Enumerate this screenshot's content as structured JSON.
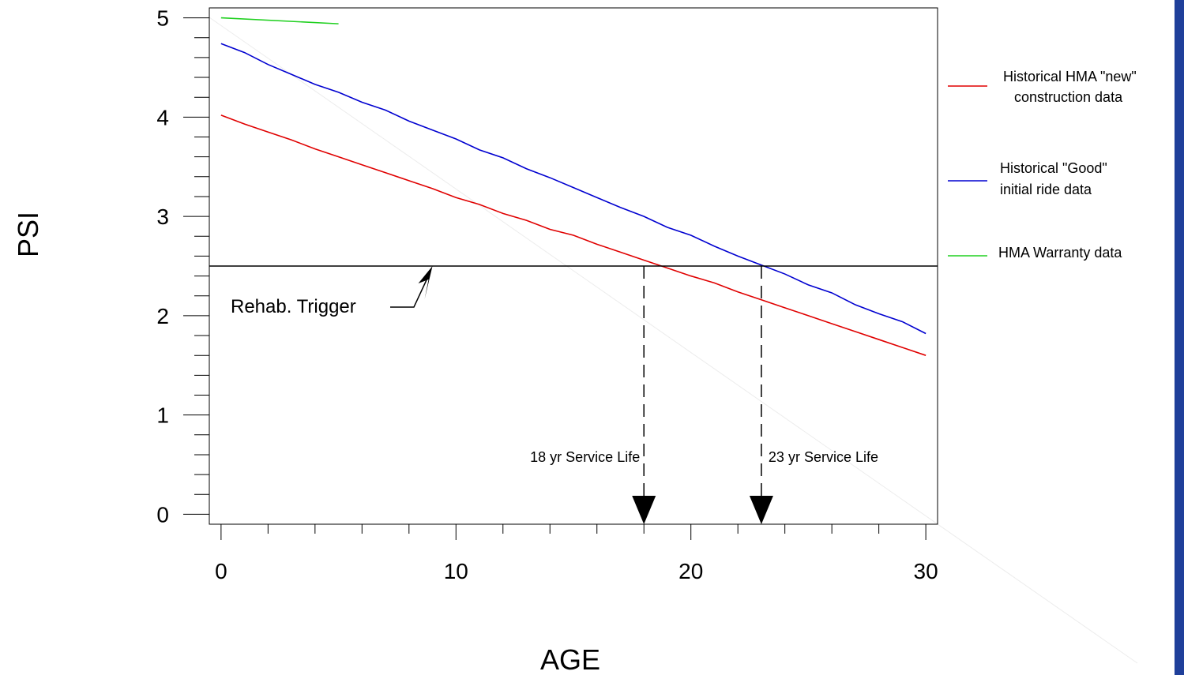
{
  "chart_data": {
    "type": "line",
    "title": "",
    "xlabel": "AGE",
    "ylabel": "PSI",
    "xlim": [
      -0.5,
      30.5
    ],
    "ylim": [
      -0.1,
      5.1
    ],
    "xticks": [
      0,
      10,
      20,
      30
    ],
    "yticks": [
      0,
      1,
      2,
      3,
      4,
      5
    ],
    "grid": false,
    "legend_position": "right",
    "series": [
      {
        "name": "Historical HMA \"new\" construction data",
        "legend_lines": [
          "Historical HMA \"new\"",
          "construction data"
        ],
        "color": "#e00000",
        "x": [
          0,
          1,
          2,
          3,
          4,
          5,
          6,
          7,
          8,
          9,
          10,
          11,
          12,
          13,
          14,
          15,
          16,
          17,
          18,
          19,
          20,
          21,
          22,
          23,
          24,
          25,
          26,
          27,
          28,
          29,
          30
        ],
        "y": [
          4.02,
          3.93,
          3.85,
          3.77,
          3.68,
          3.6,
          3.52,
          3.44,
          3.36,
          3.28,
          3.19,
          3.12,
          3.03,
          2.96,
          2.87,
          2.81,
          2.72,
          2.64,
          2.56,
          2.48,
          2.4,
          2.33,
          2.24,
          2.16,
          2.08,
          2.0,
          1.92,
          1.84,
          1.76,
          1.68,
          1.6
        ]
      },
      {
        "name": "Historical \"Good\" initial ride data",
        "legend_lines": [
          "Historical \"Good\"",
          "initial ride data"
        ],
        "color": "#0000d0",
        "x": [
          0,
          1,
          2,
          3,
          4,
          5,
          6,
          7,
          8,
          9,
          10,
          11,
          12,
          13,
          14,
          15,
          16,
          17,
          18,
          19,
          20,
          21,
          22,
          23,
          24,
          25,
          26,
          27,
          28,
          29,
          30
        ],
        "y": [
          4.74,
          4.65,
          4.53,
          4.43,
          4.33,
          4.25,
          4.15,
          4.07,
          3.96,
          3.87,
          3.78,
          3.67,
          3.59,
          3.48,
          3.39,
          3.29,
          3.19,
          3.09,
          3.0,
          2.89,
          2.81,
          2.7,
          2.6,
          2.51,
          2.42,
          2.31,
          2.23,
          2.11,
          2.02,
          1.94,
          1.82
        ]
      },
      {
        "name": "HMA Warranty data",
        "legend_lines": [
          "HMA Warranty data"
        ],
        "color": "#20d020",
        "x": [
          0,
          5
        ],
        "y": [
          5.0,
          4.94
        ]
      }
    ],
    "reference_line": {
      "y": 2.5,
      "color": "#000000"
    },
    "annotations": [
      {
        "text": "Rehab. Trigger",
        "x": 9,
        "y": 2.5
      },
      {
        "text": "18 yr Service Life",
        "x": 18,
        "y": 2.5
      },
      {
        "text": "23 yr Service Life",
        "x": 23,
        "y": 2.5
      }
    ]
  },
  "colors": {
    "frame": "#000000",
    "right_accent": "#1f3f9a"
  }
}
